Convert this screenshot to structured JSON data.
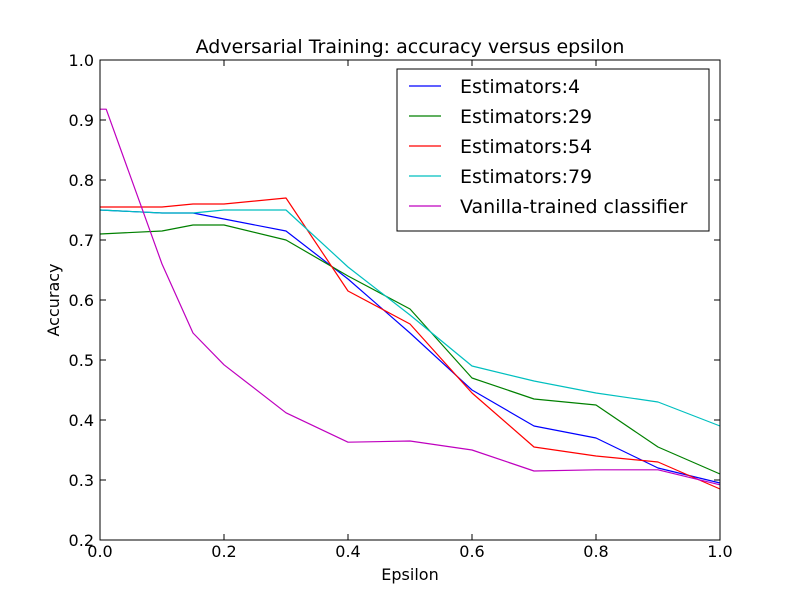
{
  "chart_data": {
    "type": "line",
    "title": "Adversarial Training: accuracy versus epsilon",
    "xlabel": "Epsilon",
    "ylabel": "Accuracy",
    "xlim": [
      0.0,
      1.0
    ],
    "ylim": [
      0.2,
      1.0
    ],
    "xticks": [
      "0.0",
      "0.2",
      "0.4",
      "0.6",
      "0.8",
      "1.0"
    ],
    "yticks": [
      "0.2",
      "0.3",
      "0.4",
      "0.5",
      "0.6",
      "0.7",
      "0.8",
      "0.9",
      "1.0"
    ],
    "grid": false,
    "legend_position": "top-right",
    "series": [
      {
        "name": "Estimators:4",
        "color": "#0000ff",
        "x": [
          0.0,
          0.1,
          0.15,
          0.2,
          0.3,
          0.4,
          0.5,
          0.6,
          0.7,
          0.8,
          0.9,
          1.0
        ],
        "y": [
          0.75,
          0.745,
          0.745,
          0.735,
          0.715,
          0.635,
          0.545,
          0.45,
          0.39,
          0.37,
          0.32,
          0.295
        ]
      },
      {
        "name": "Estimators:29",
        "color": "#008000",
        "x": [
          0.0,
          0.1,
          0.15,
          0.2,
          0.3,
          0.4,
          0.5,
          0.6,
          0.7,
          0.8,
          0.9,
          1.0
        ],
        "y": [
          0.71,
          0.715,
          0.725,
          0.725,
          0.7,
          0.64,
          0.585,
          0.47,
          0.435,
          0.425,
          0.355,
          0.31
        ]
      },
      {
        "name": "Estimators:54",
        "color": "#ff0000",
        "x": [
          0.0,
          0.1,
          0.15,
          0.2,
          0.3,
          0.4,
          0.5,
          0.6,
          0.7,
          0.8,
          0.9,
          1.0
        ],
        "y": [
          0.755,
          0.755,
          0.76,
          0.76,
          0.77,
          0.615,
          0.56,
          0.445,
          0.355,
          0.34,
          0.33,
          0.285
        ]
      },
      {
        "name": "Estimators:79",
        "color": "#00bfbf",
        "x": [
          0.0,
          0.1,
          0.15,
          0.2,
          0.3,
          0.4,
          0.5,
          0.6,
          0.7,
          0.8,
          0.9,
          1.0
        ],
        "y": [
          0.75,
          0.745,
          0.745,
          0.75,
          0.75,
          0.655,
          0.575,
          0.49,
          0.465,
          0.445,
          0.43,
          0.39
        ]
      },
      {
        "name": "Vanilla-trained classifier",
        "color": "#bf00bf",
        "x": [
          0.0,
          0.01,
          0.1,
          0.15,
          0.2,
          0.3,
          0.4,
          0.5,
          0.6,
          0.7,
          0.8,
          0.9,
          1.0
        ],
        "y": [
          0.918,
          0.918,
          0.66,
          0.545,
          0.492,
          0.412,
          0.363,
          0.365,
          0.35,
          0.315,
          0.317,
          0.317,
          0.292
        ]
      }
    ]
  }
}
